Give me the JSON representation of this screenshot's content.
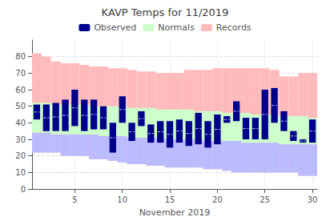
{
  "chart_data": {
    "type": "bar",
    "title": "KAVP Temps for 11/2019",
    "xlabel": "November 2019",
    "x": [
      1,
      2,
      3,
      4,
      5,
      6,
      7,
      8,
      9,
      10,
      11,
      12,
      13,
      14,
      15,
      16,
      17,
      18,
      19,
      20,
      21,
      22,
      23,
      24,
      25,
      26,
      27,
      28,
      29,
      30
    ],
    "xlim": [
      0.5,
      30.5
    ],
    "xticks": [
      5,
      10,
      15,
      20,
      25,
      30
    ],
    "ylim": [
      0,
      90
    ],
    "yticks": [
      0,
      10,
      20,
      30,
      40,
      50,
      60,
      70,
      80
    ],
    "grid": true,
    "legend": "top",
    "series": [
      {
        "name": "Records",
        "color": "#ffbbbb",
        "low": [
          22,
          22,
          22,
          20,
          20,
          20,
          18,
          18,
          17,
          16,
          15,
          15,
          14,
          14,
          13,
          13,
          13,
          13,
          12,
          12,
          11,
          10,
          10,
          10,
          10,
          10,
          10,
          10,
          8,
          8
        ],
        "high": [
          82,
          80,
          77,
          76,
          76,
          75,
          74,
          74,
          73,
          73,
          72,
          71,
          71,
          70,
          70,
          70,
          72,
          72,
          72,
          73,
          73,
          73,
          73,
          73,
          73,
          72,
          68,
          68,
          70,
          70
        ]
      },
      {
        "color": "#bbbbff",
        "low": [
          22,
          22,
          22,
          20,
          20,
          20,
          18,
          18,
          17,
          16,
          15,
          15,
          14,
          14,
          13,
          13,
          13,
          13,
          12,
          12,
          11,
          10,
          10,
          10,
          10,
          10,
          10,
          10,
          8,
          8
        ],
        "high": [
          34,
          34,
          33,
          33,
          33,
          33,
          33,
          32,
          32,
          32,
          31,
          31,
          31,
          31,
          30,
          30,
          30,
          30,
          29,
          29,
          29,
          29,
          28,
          28,
          28,
          28,
          27,
          27,
          27,
          27
        ]
      },
      {
        "name": "Normals",
        "color": "#ccffcc",
        "low": [
          34,
          34,
          33,
          33,
          33,
          33,
          33,
          32,
          32,
          32,
          31,
          31,
          31,
          31,
          30,
          30,
          30,
          30,
          29,
          29,
          29,
          29,
          28,
          28,
          28,
          28,
          27,
          27,
          27,
          27
        ],
        "high": [
          52,
          52,
          51,
          51,
          51,
          51,
          50,
          50,
          50,
          50,
          49,
          49,
          49,
          48,
          48,
          48,
          48,
          47,
          47,
          47,
          46,
          46,
          46,
          45,
          45,
          45,
          44,
          44,
          44,
          43
        ]
      },
      {
        "name": "Observed",
        "color": "#00008B",
        "low": [
          42,
          35,
          35,
          35,
          38,
          35,
          36,
          36,
          22,
          40,
          29,
          38,
          28,
          28,
          25,
          28,
          26,
          27,
          25,
          27,
          40,
          41,
          30,
          30,
          30,
          40,
          35,
          29,
          28,
          28
        ],
        "high": [
          51,
          51,
          52,
          54,
          60,
          54,
          54,
          50,
          40,
          56,
          40,
          47,
          39,
          41,
          41,
          42,
          41,
          46,
          41,
          45,
          44,
          53,
          43,
          43,
          60,
          61,
          47,
          35,
          30,
          42
        ],
        "mid": [
          46.5,
          43,
          43.5,
          44.5,
          49,
          44.5,
          45,
          43,
          31,
          48,
          34.5,
          42.5,
          33.5,
          34.5,
          33,
          35,
          33.5,
          36.5,
          33,
          36,
          42,
          47,
          36.5,
          36.5,
          45,
          50.5,
          41,
          32,
          29,
          35
        ]
      }
    ]
  }
}
